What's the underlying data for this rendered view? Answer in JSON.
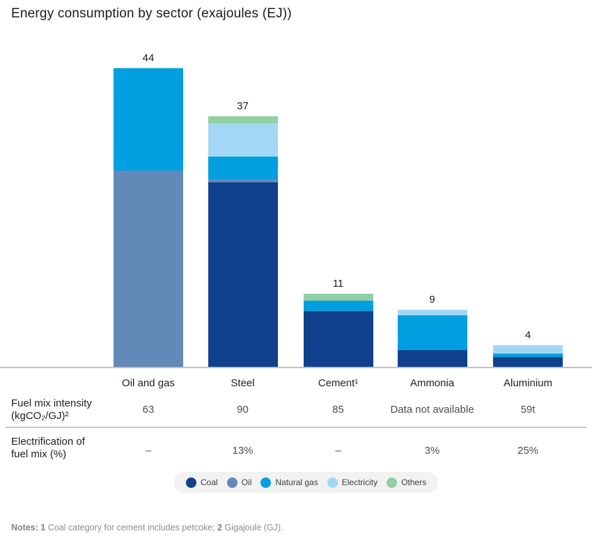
{
  "title": "Energy consumption by sector (exajoules (EJ))",
  "colors": {
    "coal": "#10418c",
    "oil": "#6289b8",
    "natural_gas": "#009fe0",
    "electricity": "#a2d8f3",
    "others": "#92cfa6",
    "axis_line": "#c2c2c2",
    "separator_line": "#cccccc",
    "legend_background": "#f2f2f2"
  },
  "chart_data": {
    "type": "bar",
    "stacked": true,
    "title": "Energy consumption by sector (exajoules (EJ))",
    "unit": "EJ",
    "grid": false,
    "legend_position": "bottom",
    "categories": [
      "Oil and gas",
      "Steel",
      "Cement¹",
      "Ammonia",
      "Aluminium"
    ],
    "totals": [
      "44",
      "37",
      "11",
      "9",
      "4"
    ],
    "series": [
      {
        "name": "Coal",
        "color_key": "coal",
        "values": [
          0,
          27.2,
          8.3,
          2.6,
          1.5
        ]
      },
      {
        "name": "Oil",
        "color_key": "oil",
        "values": [
          29,
          0.5,
          0,
          0,
          0
        ]
      },
      {
        "name": "Natural gas",
        "color_key": "natural_gas",
        "values": [
          15,
          3.3,
          1.5,
          5.1,
          0.5
        ]
      },
      {
        "name": "Electricity",
        "color_key": "electricity",
        "values": [
          0,
          4.9,
          0,
          0.8,
          1.3
        ]
      },
      {
        "name": "Others",
        "color_key": "others",
        "values": [
          0,
          1.1,
          1.0,
          0,
          0
        ]
      }
    ]
  },
  "table": {
    "rows": [
      {
        "label_lines": [
          "Fuel mix intensity",
          "(kgCO₂/GJ)²"
        ],
        "values": [
          "63",
          "90",
          "85",
          "Data not available",
          "59t"
        ]
      },
      {
        "label_lines": [
          "Electrification of",
          "fuel mix (%)"
        ],
        "values": [
          "–",
          "13%",
          "–",
          "3%",
          "25%"
        ]
      }
    ]
  },
  "legend": {
    "items": [
      {
        "label": "Coal",
        "color_key": "coal"
      },
      {
        "label": "Oil",
        "color_key": "oil"
      },
      {
        "label": "Natural gas",
        "color_key": "natural_gas"
      },
      {
        "label": "Electricity",
        "color_key": "electricity"
      },
      {
        "label": "Others",
        "color_key": "others"
      }
    ]
  },
  "notes": {
    "prefix": "Notes:",
    "note1_num": "1",
    "note1_text": "Coal category for cement includes petcoke;",
    "note2_num": "2",
    "note2_text": "Gigajoule (GJ)."
  }
}
